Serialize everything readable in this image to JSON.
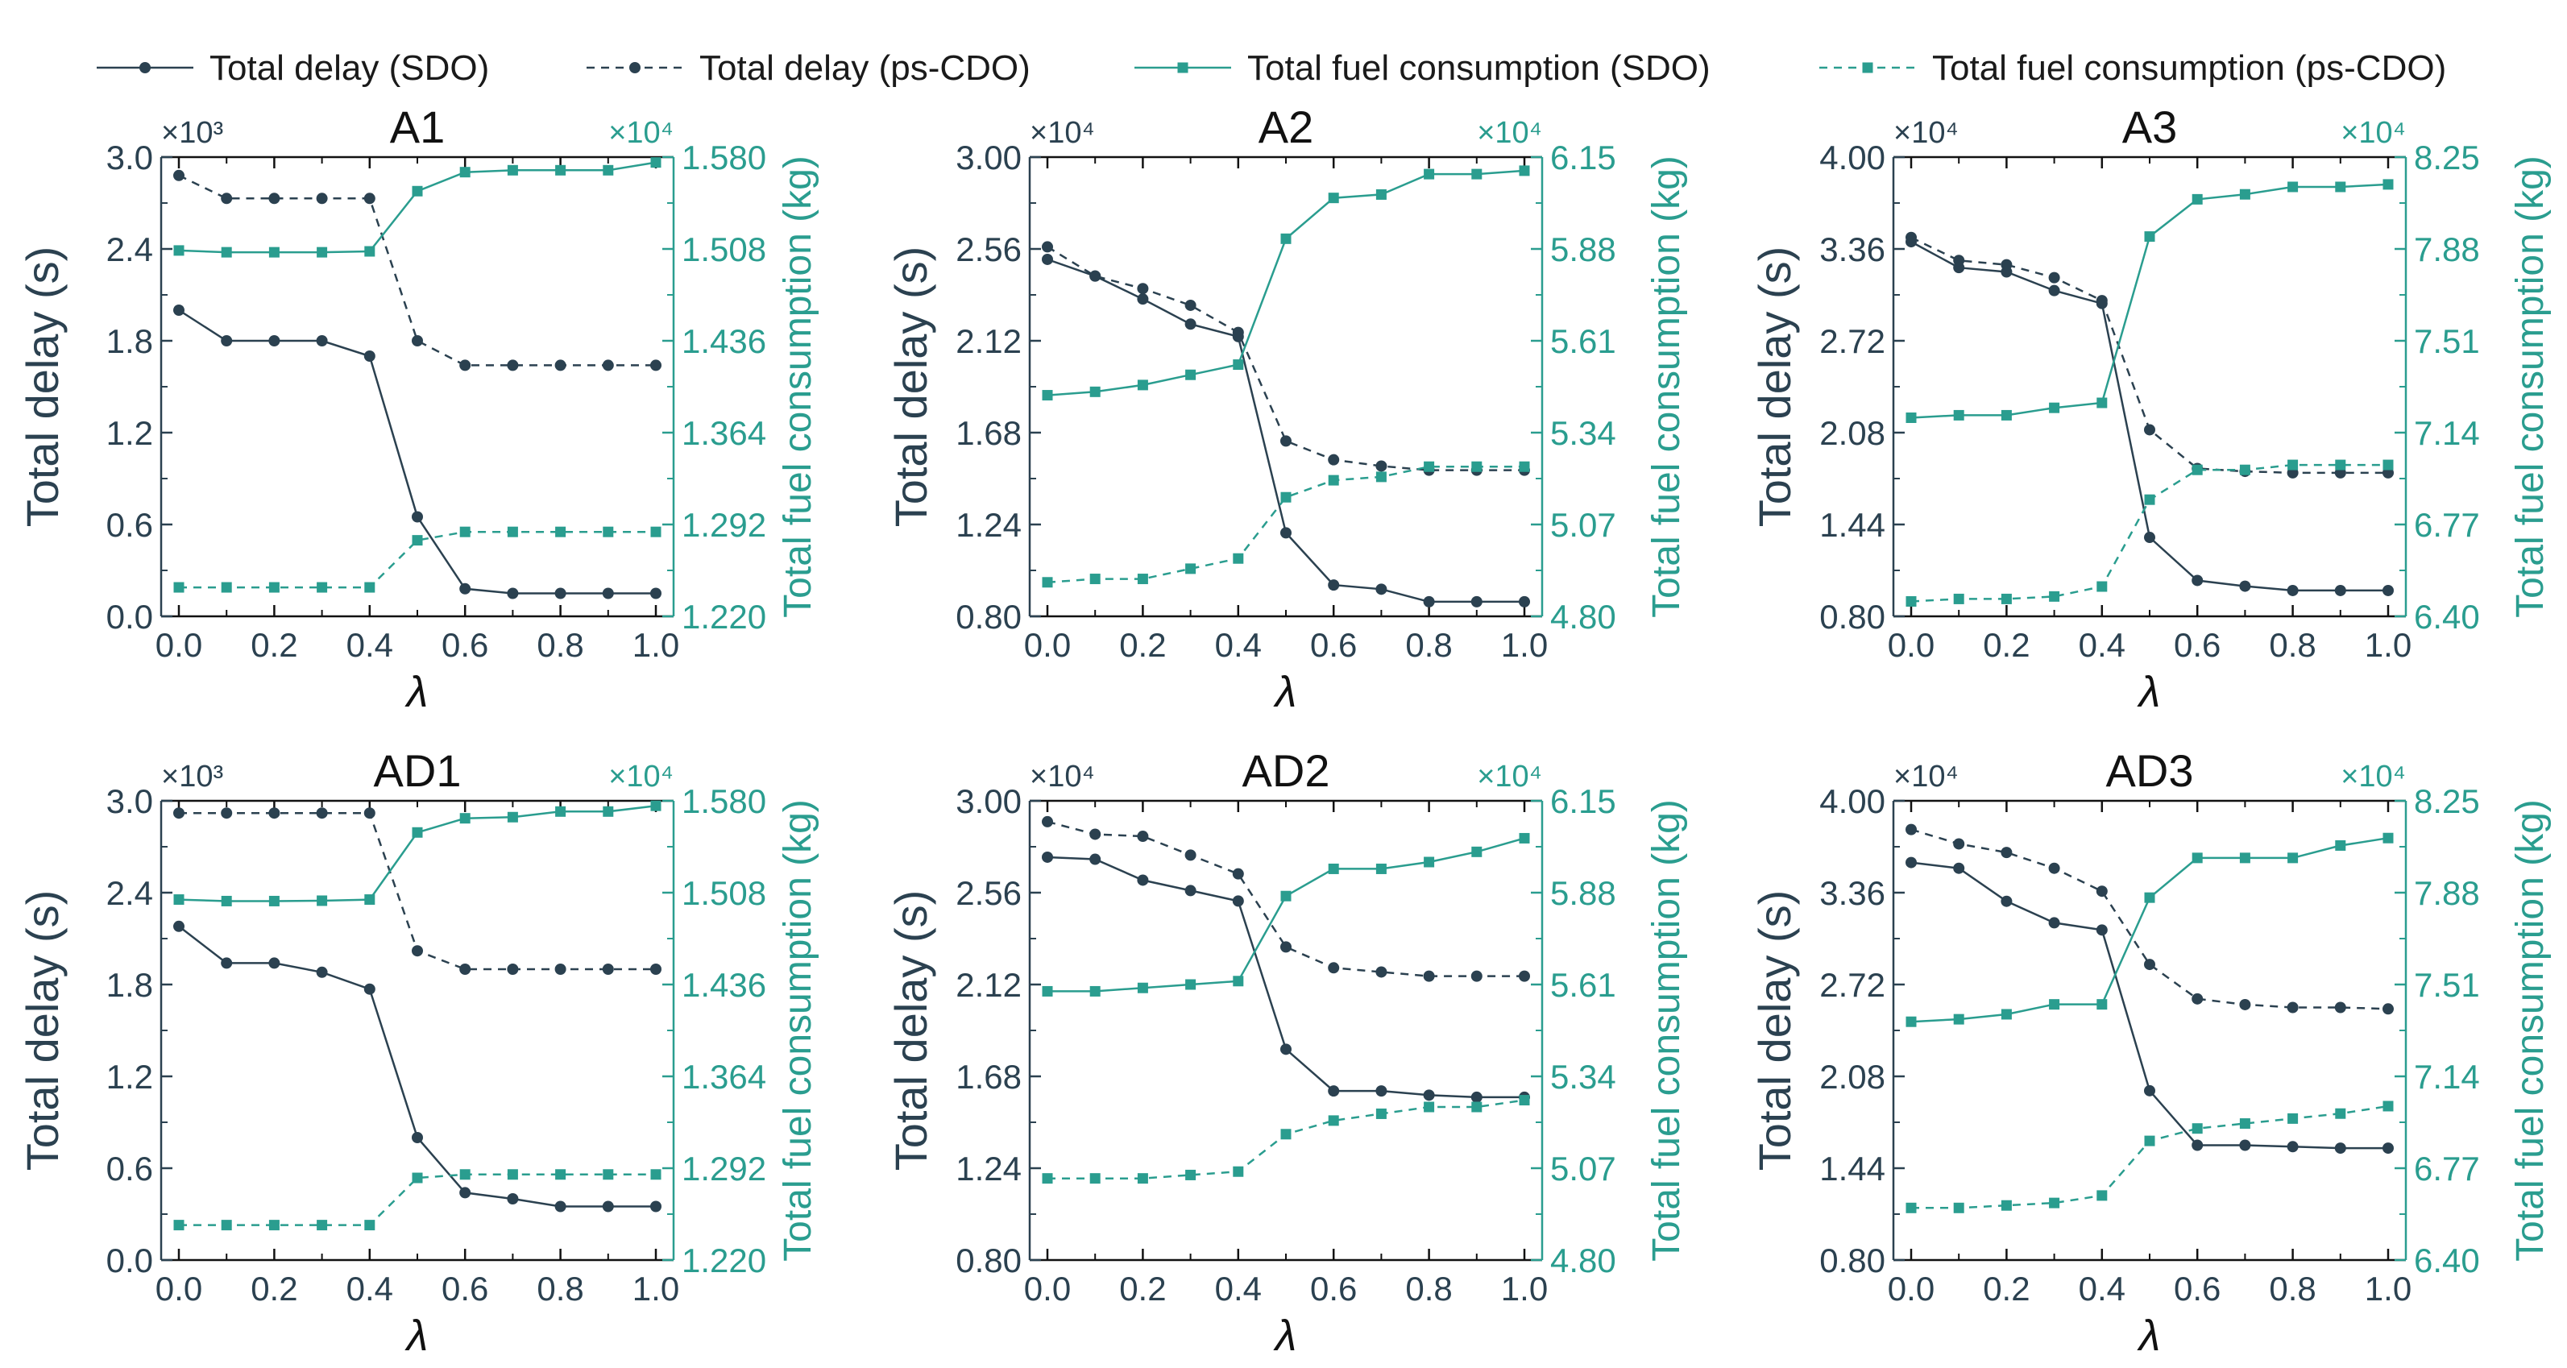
{
  "legend": [
    {
      "label": "Total delay (SDO)",
      "key": "delay_sdo"
    },
    {
      "label": "Total delay (ps-CDO)",
      "key": "delay_cdo"
    },
    {
      "label": "Total fuel consumption (SDO)",
      "key": "fuel_sdo"
    },
    {
      "label": "Total fuel consumption (ps-CDO)",
      "key": "fuel_cdo"
    }
  ],
  "colors": {
    "delay": "#2b4150",
    "fuel": "#2a9d8f"
  },
  "chart_data": [
    {
      "type": "line",
      "title": "A1",
      "xlabel": "λ",
      "ylabel": "Total delay (s)",
      "ylabel_right": "Total fuel consumption (kg)",
      "left_multiplier": "×10³",
      "right_multiplier": "×10⁴",
      "x": [
        0.0,
        0.1,
        0.2,
        0.3,
        0.4,
        0.5,
        0.6,
        0.7,
        0.8,
        0.9,
        1.0
      ],
      "xticks": [
        "0.0",
        "0.2",
        "0.4",
        "0.6",
        "0.8",
        "1.0"
      ],
      "ylim": [
        0.0,
        3.0
      ],
      "yticks": [
        "0.0",
        "0.6",
        "1.2",
        "1.8",
        "2.4",
        "3.0"
      ],
      "ylim_right": [
        1.22,
        1.58
      ],
      "yticks_right": [
        "1.220",
        "1.292",
        "1.364",
        "1.436",
        "1.508",
        "1.580"
      ],
      "series": [
        {
          "name": "Total delay (SDO)",
          "axis": "left",
          "values": [
            2.0,
            1.8,
            1.8,
            1.8,
            1.7,
            0.65,
            0.18,
            0.15,
            0.15,
            0.15,
            0.15
          ]
        },
        {
          "name": "Total delay (ps-CDO)",
          "axis": "left",
          "values": [
            2.88,
            2.73,
            2.73,
            2.73,
            2.73,
            1.8,
            1.64,
            1.64,
            1.64,
            1.64,
            1.64
          ]
        },
        {
          "name": "Total fuel consumption (SDO)",
          "axis": "right",
          "values": [
            1.5068,
            1.5054,
            1.5054,
            1.5054,
            1.5061,
            1.5533,
            1.5682,
            1.5697,
            1.5697,
            1.5697,
            1.5758
          ]
        },
        {
          "name": "Total fuel consumption (ps-CDO)",
          "axis": "right",
          "values": [
            1.2427,
            1.2427,
            1.2427,
            1.2427,
            1.2427,
            1.2796,
            1.2862,
            1.2862,
            1.2862,
            1.2862,
            1.2862
          ]
        }
      ]
    },
    {
      "type": "line",
      "title": "A2",
      "xlabel": "λ",
      "ylabel": "Total delay (s)",
      "ylabel_right": "Total fuel consumption (kg)",
      "left_multiplier": "×10⁴",
      "right_multiplier": "×10⁴",
      "x": [
        0.0,
        0.1,
        0.2,
        0.3,
        0.4,
        0.5,
        0.6,
        0.7,
        0.8,
        0.9,
        1.0
      ],
      "xticks": [
        "0.0",
        "0.2",
        "0.4",
        "0.6",
        "0.8",
        "1.0"
      ],
      "ylim": [
        0.8,
        3.0
      ],
      "yticks": [
        "0.80",
        "1.24",
        "1.68",
        "2.12",
        "2.56",
        "3.00"
      ],
      "ylim_right": [
        4.8,
        6.15
      ],
      "yticks_right": [
        "4.80",
        "5.07",
        "5.34",
        "5.61",
        "5.88",
        "6.15"
      ],
      "series": [
        {
          "name": "Total delay (SDO)",
          "axis": "left",
          "values": [
            2.51,
            2.43,
            2.32,
            2.2,
            2.14,
            1.2,
            0.95,
            0.93,
            0.87,
            0.87,
            0.87
          ]
        },
        {
          "name": "Total delay (ps-CDO)",
          "axis": "left",
          "values": [
            2.57,
            2.43,
            2.37,
            2.29,
            2.16,
            1.64,
            1.55,
            1.52,
            1.5,
            1.5,
            1.5
          ]
        },
        {
          "name": "Total fuel consumption (SDO)",
          "axis": "right",
          "values": [
            5.45,
            5.46,
            5.48,
            5.51,
            5.54,
            5.91,
            6.03,
            6.04,
            6.1,
            6.1,
            6.11
          ]
        },
        {
          "name": "Total fuel consumption (ps-CDO)",
          "axis": "right",
          "values": [
            4.9,
            4.91,
            4.91,
            4.94,
            4.97,
            5.15,
            5.2,
            5.21,
            5.24,
            5.24,
            5.24
          ]
        }
      ]
    },
    {
      "type": "line",
      "title": "A3",
      "xlabel": "λ",
      "ylabel": "Total delay (s)",
      "ylabel_right": "Total fuel consumption (kg)",
      "left_multiplier": "×10⁴",
      "right_multiplier": "×10⁴",
      "x": [
        0.0,
        0.1,
        0.2,
        0.3,
        0.4,
        0.5,
        0.6,
        0.7,
        0.8,
        0.9,
        1.0
      ],
      "xticks": [
        "0.0",
        "0.2",
        "0.4",
        "0.6",
        "0.8",
        "1.0"
      ],
      "ylim": [
        0.8,
        4.0
      ],
      "yticks": [
        "0.80",
        "1.44",
        "2.08",
        "2.72",
        "3.36",
        "4.00"
      ],
      "ylim_right": [
        6.4,
        8.25
      ],
      "yticks_right": [
        "6.40",
        "6.77",
        "7.14",
        "7.51",
        "7.88",
        "8.25"
      ],
      "series": [
        {
          "name": "Total delay (SDO)",
          "axis": "left",
          "values": [
            3.41,
            3.23,
            3.2,
            3.07,
            2.98,
            1.35,
            1.05,
            1.01,
            0.98,
            0.98,
            0.98
          ]
        },
        {
          "name": "Total delay (ps-CDO)",
          "axis": "left",
          "values": [
            3.44,
            3.28,
            3.25,
            3.16,
            3.0,
            2.1,
            1.83,
            1.81,
            1.8,
            1.8,
            1.8
          ]
        },
        {
          "name": "Total fuel consumption (SDO)",
          "axis": "right",
          "values": [
            7.2,
            7.21,
            7.21,
            7.24,
            7.26,
            7.93,
            8.08,
            8.1,
            8.13,
            8.13,
            8.14
          ]
        },
        {
          "name": "Total fuel consumption (ps-CDO)",
          "axis": "right",
          "values": [
            6.46,
            6.47,
            6.47,
            6.48,
            6.52,
            6.87,
            6.99,
            6.99,
            7.01,
            7.01,
            7.01
          ]
        }
      ]
    },
    {
      "type": "line",
      "title": "AD1",
      "xlabel": "λ",
      "ylabel": "Total delay (s)",
      "ylabel_right": "Total fuel consumption (kg)",
      "left_multiplier": "×10³",
      "right_multiplier": "×10⁴",
      "x": [
        0.0,
        0.1,
        0.2,
        0.3,
        0.4,
        0.5,
        0.6,
        0.7,
        0.8,
        0.9,
        1.0
      ],
      "xticks": [
        "0.0",
        "0.2",
        "0.4",
        "0.6",
        "0.8",
        "1.0"
      ],
      "ylim": [
        0.0,
        3.0
      ],
      "yticks": [
        "0.0",
        "0.6",
        "1.2",
        "1.8",
        "2.4",
        "3.0"
      ],
      "ylim_right": [
        1.22,
        1.58
      ],
      "yticks_right": [
        "1.220",
        "1.292",
        "1.364",
        "1.436",
        "1.508",
        "1.580"
      ],
      "series": [
        {
          "name": "Total delay (SDO)",
          "axis": "left",
          "values": [
            2.18,
            1.94,
            1.94,
            1.88,
            1.77,
            0.8,
            0.44,
            0.4,
            0.35,
            0.35,
            0.35
          ]
        },
        {
          "name": "Total delay (ps-CDO)",
          "axis": "left",
          "values": [
            2.92,
            2.92,
            2.92,
            2.92,
            2.92,
            2.02,
            1.9,
            1.9,
            1.9,
            1.9,
            1.9
          ]
        },
        {
          "name": "Total fuel consumption (SDO)",
          "axis": "right",
          "values": [
            1.5026,
            1.5014,
            1.5014,
            1.5017,
            1.5026,
            1.5552,
            1.5663,
            1.5672,
            1.5716,
            1.5716,
            1.5761
          ]
        },
        {
          "name": "Total fuel consumption (ps-CDO)",
          "axis": "right",
          "values": [
            1.2474,
            1.2474,
            1.2474,
            1.2474,
            1.2474,
            1.2844,
            1.2871,
            1.2871,
            1.2871,
            1.2871,
            1.2871
          ]
        }
      ]
    },
    {
      "type": "line",
      "title": "AD2",
      "xlabel": "λ",
      "ylabel": "Total delay (s)",
      "ylabel_right": "Total fuel consumption (kg)",
      "left_multiplier": "×10⁴",
      "right_multiplier": "×10⁴",
      "x": [
        0.0,
        0.1,
        0.2,
        0.3,
        0.4,
        0.5,
        0.6,
        0.7,
        0.8,
        0.9,
        1.0
      ],
      "xticks": [
        "0.0",
        "0.2",
        "0.4",
        "0.6",
        "0.8",
        "1.0"
      ],
      "ylim": [
        0.8,
        3.0
      ],
      "yticks": [
        "0.80",
        "1.24",
        "1.68",
        "2.12",
        "2.56",
        "3.00"
      ],
      "ylim_right": [
        4.8,
        6.15
      ],
      "yticks_right": [
        "4.80",
        "5.07",
        "5.34",
        "5.61",
        "5.88",
        "6.15"
      ],
      "series": [
        {
          "name": "Total delay (SDO)",
          "axis": "left",
          "values": [
            2.73,
            2.72,
            2.62,
            2.57,
            2.52,
            1.81,
            1.61,
            1.61,
            1.59,
            1.58,
            1.58
          ]
        },
        {
          "name": "Total delay (ps-CDO)",
          "axis": "left",
          "values": [
            2.9,
            2.84,
            2.83,
            2.74,
            2.65,
            2.3,
            2.2,
            2.18,
            2.16,
            2.16,
            2.16
          ]
        },
        {
          "name": "Total fuel consumption (SDO)",
          "axis": "right",
          "values": [
            5.59,
            5.59,
            5.6,
            5.61,
            5.62,
            5.87,
            5.95,
            5.95,
            5.97,
            6.0,
            6.04
          ]
        },
        {
          "name": "Total fuel consumption (ps-CDO)",
          "axis": "right",
          "values": [
            5.04,
            5.04,
            5.04,
            5.05,
            5.06,
            5.17,
            5.21,
            5.23,
            5.25,
            5.25,
            5.27
          ]
        }
      ]
    },
    {
      "type": "line",
      "title": "AD3",
      "xlabel": "λ",
      "ylabel": "Total delay (s)",
      "ylabel_right": "Total fuel consumption (kg)",
      "left_multiplier": "×10⁴",
      "right_multiplier": "×10⁴",
      "x": [
        0.0,
        0.1,
        0.2,
        0.3,
        0.4,
        0.5,
        0.6,
        0.7,
        0.8,
        0.9,
        1.0
      ],
      "xticks": [
        "0.0",
        "0.2",
        "0.4",
        "0.6",
        "0.8",
        "1.0"
      ],
      "ylim": [
        0.8,
        4.0
      ],
      "yticks": [
        "0.80",
        "1.44",
        "2.08",
        "2.72",
        "3.36",
        "4.00"
      ],
      "ylim_right": [
        6.4,
        8.25
      ],
      "yticks_right": [
        "6.40",
        "6.77",
        "7.14",
        "7.51",
        "7.88",
        "8.25"
      ],
      "series": [
        {
          "name": "Total delay (SDO)",
          "axis": "left",
          "values": [
            3.57,
            3.53,
            3.3,
            3.15,
            3.1,
            1.98,
            1.6,
            1.6,
            1.59,
            1.58,
            1.58
          ]
        },
        {
          "name": "Total delay (ps-CDO)",
          "axis": "left",
          "values": [
            3.8,
            3.7,
            3.64,
            3.53,
            3.37,
            2.86,
            2.62,
            2.58,
            2.56,
            2.56,
            2.55
          ]
        },
        {
          "name": "Total fuel consumption (SDO)",
          "axis": "right",
          "values": [
            7.36,
            7.37,
            7.39,
            7.43,
            7.43,
            7.86,
            8.02,
            8.02,
            8.02,
            8.07,
            8.1
          ]
        },
        {
          "name": "Total fuel consumption (ps-CDO)",
          "axis": "right",
          "values": [
            6.61,
            6.61,
            6.62,
            6.63,
            6.66,
            6.88,
            6.93,
            6.95,
            6.97,
            6.99,
            7.02
          ]
        }
      ]
    }
  ]
}
